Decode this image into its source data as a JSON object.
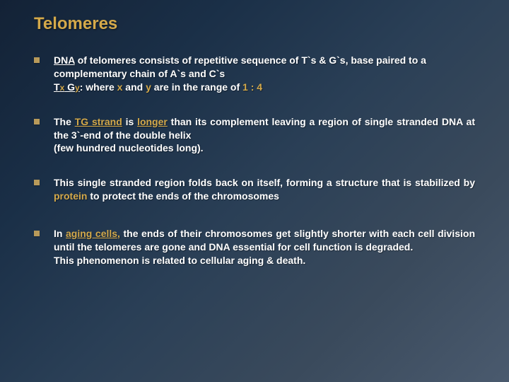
{
  "colors": {
    "title": "#d4a94a",
    "highlight": "#d4a94a",
    "body_text": "#ffffff",
    "bullet_marker": "#b89a5a",
    "background_gradient": [
      "#132236",
      "#1a2f47",
      "#2a3f56",
      "#3a4a5c",
      "#4a5a6e"
    ]
  },
  "typography": {
    "title_fontsize": 24,
    "body_fontsize": 14,
    "font_family": "Verdana",
    "font_weight": "bold"
  },
  "title": "Telomeres",
  "bullets": {
    "b1": {
      "dna": "DNA",
      "l1_rest": " of telomeres consists of repetitive sequence of T`s & G`s,  base paired to a complementary chain of A`s and C`s",
      "tx": "Tx",
      "gy": " Gy",
      "l2_mid": ": where ",
      "x": "x",
      "and": " and ",
      "y": "y",
      "l2_tail": " are in the range of ",
      "range": "1 : 4"
    },
    "b2": {
      "pre": "The ",
      "tg_strand": "TG strand",
      "mid1": " is ",
      "longer": "longer",
      "mid2": " than its complement leaving a region of single stranded DNA at the 3`-end of the double helix",
      "line2": "(few hundred nucleotides long)."
    },
    "b3": {
      "pre": "This single stranded region folds back on itself, forming a structure that is stabilized by ",
      "protein": "protein",
      "post": " to protect the ends of the chromosomes"
    },
    "b4": {
      "pre": "In ",
      "aging_cells": "aging cells",
      "comma": ",",
      "post": " the ends of their chromosomes get slightly shorter with each cell division until the telomeres are gone and DNA essential for cell function is degraded.",
      "line2": "This phenomenon is related to cellular aging & death."
    }
  }
}
